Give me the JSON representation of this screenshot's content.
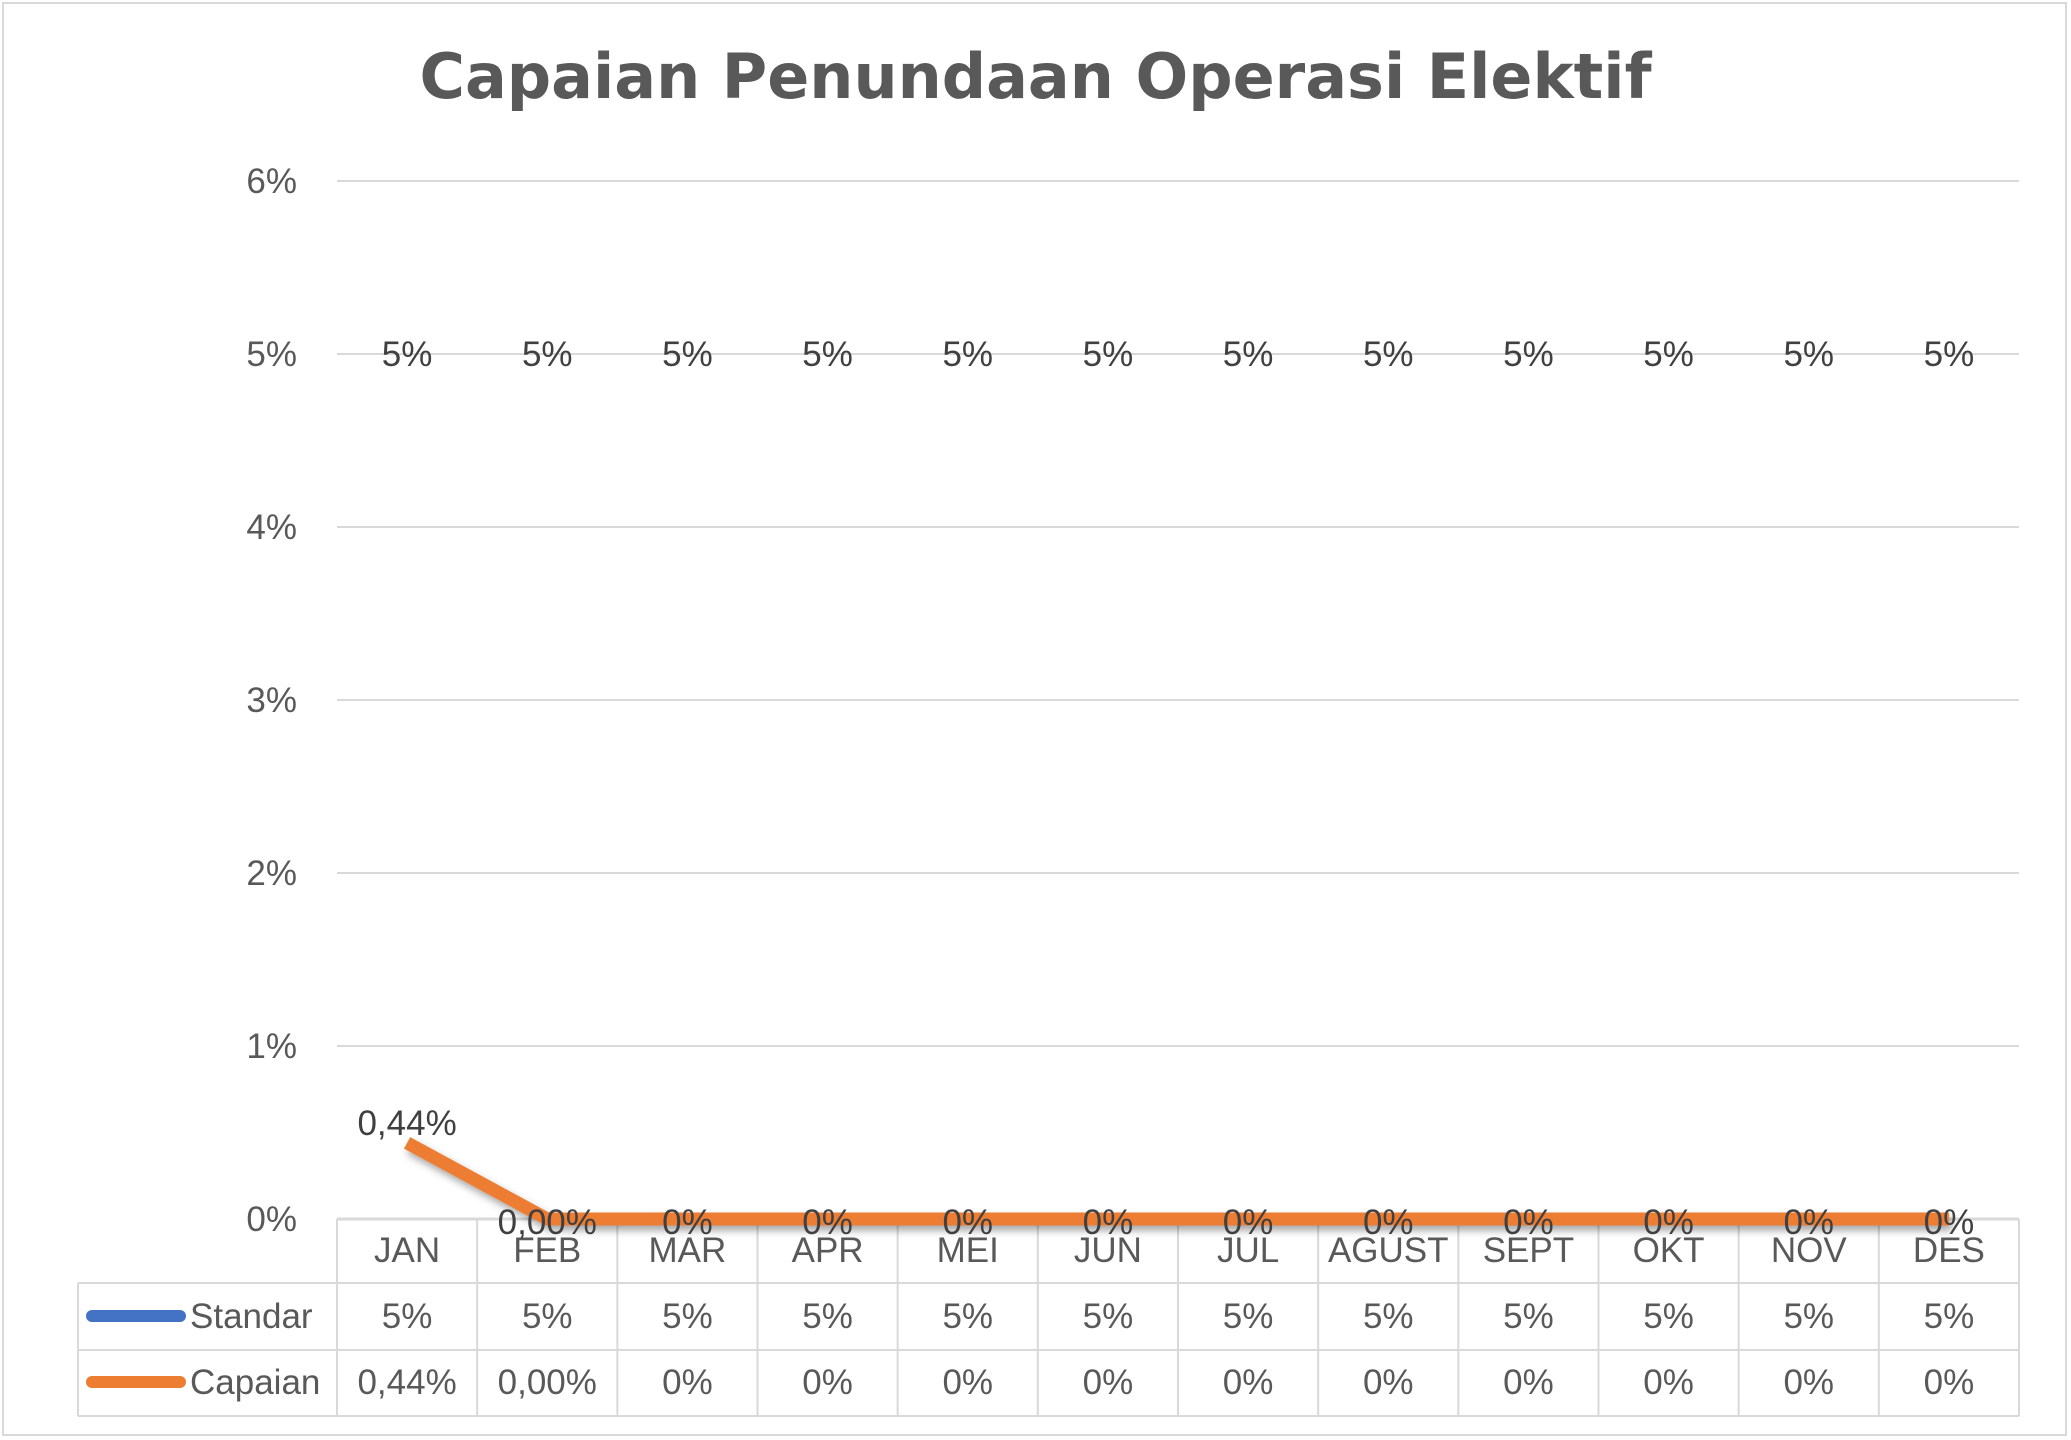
{
  "chart_data": {
    "type": "line",
    "title": "Capaian Penundaan Operasi Elektif",
    "categories": [
      "JAN",
      "FEB",
      "MAR",
      "APR",
      "MEI",
      "JUN",
      "JUL",
      "AGUST",
      "SEPT",
      "OKT",
      "NOV",
      "DES"
    ],
    "ylim": [
      0,
      6
    ],
    "y_ticks": [
      "0%",
      "1%",
      "2%",
      "3%",
      "4%",
      "5%",
      "6%"
    ],
    "grid": true,
    "legend": "data-table",
    "series": [
      {
        "name": "Standar",
        "color": "#4472c4",
        "values": [
          5,
          5,
          5,
          5,
          5,
          5,
          5,
          5,
          5,
          5,
          5,
          5
        ],
        "labels": [
          "5%",
          "5%",
          "5%",
          "5%",
          "5%",
          "5%",
          "5%",
          "5%",
          "5%",
          "5%",
          "5%",
          "5%"
        ]
      },
      {
        "name": "Capaian",
        "color": "#ed7d31",
        "values": [
          0.44,
          0,
          0,
          0,
          0,
          0,
          0,
          0,
          0,
          0,
          0,
          0
        ],
        "labels": [
          "0,44%",
          "0,00%",
          "0%",
          "0%",
          "0%",
          "0%",
          "0%",
          "0%",
          "0%",
          "0%",
          "0%",
          "0%"
        ]
      }
    ]
  }
}
